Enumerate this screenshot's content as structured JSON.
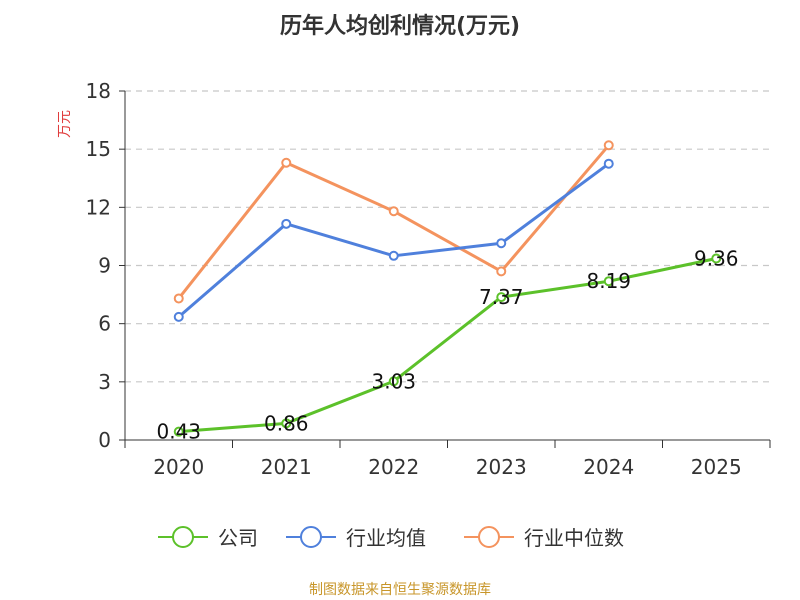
{
  "title": "历年人均创利情况(万元)",
  "source": "制图数据来自恒生聚源数据库",
  "chart_data": {
    "type": "line",
    "title": "历年人均创利情况(万元)",
    "ylabel": "万元",
    "xlabel": "",
    "categories": [
      "2020",
      "2021",
      "2022",
      "2023",
      "2024",
      "2025"
    ],
    "ylim": [
      0,
      18
    ],
    "yticks": [
      0,
      3,
      6,
      9,
      12,
      15,
      18
    ],
    "grid": true,
    "legend_position": "bottom",
    "series": [
      {
        "name": "公司",
        "color": "#5cc12a",
        "values": [
          0.43,
          0.86,
          3.03,
          7.37,
          8.19,
          9.36
        ],
        "labels": [
          "0.43",
          "0.86",
          "3.03",
          "7.37",
          "8.19",
          "9.36"
        ]
      },
      {
        "name": "行业均值",
        "color": "#4f80dc",
        "values": [
          6.35,
          11.15,
          9.5,
          10.15,
          14.25,
          null
        ]
      },
      {
        "name": "行业中位数",
        "color": "#f4935e",
        "values": [
          7.3,
          14.3,
          11.8,
          8.7,
          15.2,
          null
        ]
      }
    ]
  }
}
